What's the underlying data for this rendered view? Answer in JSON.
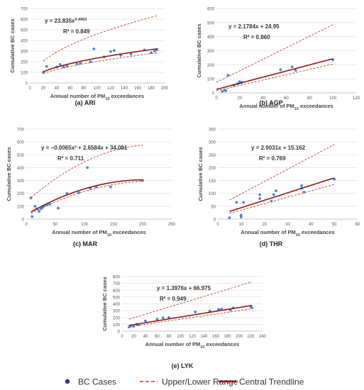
{
  "legend": {
    "items": [
      {
        "label": "BC Cases",
        "kind": "marker",
        "color": "#1f3a93"
      },
      {
        "label": "Upper/Lower Range",
        "kind": "dashed",
        "color": "#c0392b"
      },
      {
        "label": "Central Trendline",
        "kind": "solid",
        "color": "#8b1a1a"
      }
    ]
  },
  "chart_data": [
    {
      "type": "scatter",
      "panel": "(a) ARI",
      "ylabel": "Cumulative BC cases",
      "xlabel": "Annual number of PM10 exceedances",
      "equation": "y = 23.835x^0.4963",
      "r2": "R² = 0.849",
      "xlim": [
        0,
        200
      ],
      "ylim": [
        0,
        700
      ],
      "xticks": [
        0,
        20,
        40,
        60,
        80,
        100,
        120,
        140,
        160,
        180,
        200
      ],
      "yticks": [
        0,
        100,
        200,
        300,
        400,
        500,
        600,
        700
      ],
      "points": [
        [
          20,
          100
        ],
        [
          25,
          155
        ],
        [
          40,
          150
        ],
        [
          45,
          175
        ],
        [
          50,
          150
        ],
        [
          55,
          160
        ],
        [
          70,
          180
        ],
        [
          75,
          185
        ],
        [
          90,
          200
        ],
        [
          95,
          320
        ],
        [
          110,
          245
        ],
        [
          120,
          295
        ],
        [
          125,
          305
        ],
        [
          135,
          260
        ],
        [
          150,
          270
        ],
        [
          170,
          310
        ],
        [
          180,
          285
        ],
        [
          185,
          300
        ],
        [
          188,
          310
        ]
      ],
      "central": {
        "model": "power",
        "a": 23.835,
        "b": 0.4963,
        "x_range": [
          20,
          190
        ]
      },
      "upper": {
        "model": "power",
        "a": 46,
        "b": 0.5,
        "x_range": [
          20,
          190
        ]
      },
      "lower": {
        "model": "power",
        "a": 18.5,
        "b": 0.52,
        "x_range": [
          20,
          190
        ]
      }
    },
    {
      "type": "scatter",
      "panel": "(b) AGP",
      "ylabel": "Cumulative BC cases",
      "xlabel": "Annual number of PM10 exceedances",
      "equation": "y = 2.1784x + 24.95",
      "r2": "R² = 0.860",
      "xlim": [
        0,
        120
      ],
      "ylim": [
        0,
        600
      ],
      "xticks": [
        0,
        20,
        40,
        60,
        80,
        100,
        120
      ],
      "yticks": [
        0,
        100,
        200,
        300,
        400,
        500,
        600
      ],
      "points": [
        [
          5,
          10
        ],
        [
          7,
          20
        ],
        [
          8,
          15
        ],
        [
          10,
          125
        ],
        [
          15,
          55
        ],
        [
          18,
          65
        ],
        [
          20,
          80
        ],
        [
          20,
          70
        ],
        [
          22,
          75
        ],
        [
          55,
          165
        ],
        [
          65,
          185
        ],
        [
          68,
          160
        ],
        [
          100,
          235
        ]
      ],
      "central": {
        "model": "linear",
        "m": 2.1784,
        "c": 24.95,
        "x_range": [
          0,
          100
        ]
      },
      "upper": {
        "model": "linear",
        "m": 4.1,
        "c": 75,
        "x_range": [
          0,
          100
        ]
      },
      "lower": {
        "model": "linear",
        "m": 1.9,
        "c": 15,
        "x_range": [
          0,
          100
        ]
      }
    },
    {
      "type": "scatter",
      "panel": "(c) MAR",
      "ylabel": "Cumulative BC cases",
      "xlabel": "Annual number of PM10 exceedances",
      "equation": "y = −0.0065x² + 2.6584x + 34.081",
      "r2": "R² = 0.711",
      "xlim": [
        0,
        250
      ],
      "ylim": [
        0,
        700
      ],
      "xticks": [
        0,
        50,
        100,
        150,
        200,
        250
      ],
      "yticks": [
        0,
        100,
        200,
        300,
        400,
        500,
        600,
        700
      ],
      "points": [
        [
          8,
          165
        ],
        [
          10,
          20
        ],
        [
          15,
          100
        ],
        [
          18,
          80
        ],
        [
          22,
          60
        ],
        [
          25,
          80
        ],
        [
          28,
          90
        ],
        [
          30,
          100
        ],
        [
          35,
          110
        ],
        [
          40,
          115
        ],
        [
          55,
          85
        ],
        [
          70,
          200
        ],
        [
          90,
          205
        ],
        [
          105,
          400
        ],
        [
          110,
          240
        ],
        [
          120,
          250
        ],
        [
          145,
          250
        ],
        [
          200,
          300
        ]
      ],
      "central": {
        "model": "quadratic",
        "a": -0.0065,
        "b": 2.6584,
        "c": 34.081,
        "x_range": [
          8,
          200
        ]
      },
      "upper": {
        "model": "quadratic",
        "a": -0.009,
        "b": 4.0,
        "c": 135,
        "x_range": [
          8,
          200
        ]
      },
      "lower": {
        "model": "quadratic",
        "a": -0.0055,
        "b": 2.45,
        "c": 25,
        "x_range": [
          8,
          200
        ]
      }
    },
    {
      "type": "scatter",
      "panel": "(d) THR",
      "ylabel": "Cumulative BC cases",
      "xlabel": "Annual number of PM10 exceedances",
      "equation": "y = 2.9031x + 15.162",
      "r2": "R² = 0.769",
      "xlim": [
        0,
        60
      ],
      "ylim": [
        0,
        350
      ],
      "xticks": [
        0,
        10,
        20,
        30,
        40,
        50,
        60
      ],
      "yticks": [
        0,
        50,
        100,
        150,
        200,
        250,
        300,
        350
      ],
      "points": [
        [
          5,
          5
        ],
        [
          8,
          65
        ],
        [
          10,
          15
        ],
        [
          10,
          8
        ],
        [
          11,
          65
        ],
        [
          18,
          95
        ],
        [
          18,
          80
        ],
        [
          23,
          70
        ],
        [
          24,
          95
        ],
        [
          25,
          110
        ],
        [
          36,
          130
        ],
        [
          36,
          120
        ],
        [
          37,
          105
        ],
        [
          50,
          155
        ]
      ],
      "central": {
        "model": "linear",
        "m": 2.9031,
        "c": 15.162,
        "x_range": [
          5,
          50
        ]
      },
      "upper": {
        "model": "linear",
        "m": 4.8,
        "c": 50,
        "x_range": [
          5,
          50
        ]
      },
      "lower": {
        "model": "linear",
        "m": 2.5,
        "c": 10,
        "x_range": [
          5,
          50
        ]
      }
    },
    {
      "type": "scatter",
      "panel": "(e) LYK",
      "ylabel": "Cumulative BC cases",
      "xlabel": "Annual number of PM10 exceedances",
      "equation": "y = 1.3976x + 66.975",
      "r2": "R² = 0.949",
      "xlim": [
        0,
        240
      ],
      "ylim": [
        0,
        800
      ],
      "xticks": [
        0,
        20,
        40,
        60,
        80,
        100,
        120,
        140,
        160,
        180,
        200,
        220,
        240
      ],
      "yticks": [
        0,
        100,
        200,
        300,
        400,
        500,
        600,
        700,
        800
      ],
      "points": [
        [
          12,
          60
        ],
        [
          15,
          75
        ],
        [
          20,
          70
        ],
        [
          25,
          100
        ],
        [
          28,
          95
        ],
        [
          40,
          150
        ],
        [
          60,
          175
        ],
        [
          70,
          195
        ],
        [
          80,
          200
        ],
        [
          125,
          280
        ],
        [
          150,
          295
        ],
        [
          165,
          320
        ],
        [
          170,
          325
        ],
        [
          185,
          310
        ],
        [
          190,
          340
        ],
        [
          220,
          360
        ],
        [
          222,
          340
        ]
      ],
      "central": {
        "model": "linear",
        "m": 1.3976,
        "c": 66.975,
        "x_range": [
          12,
          222
        ]
      },
      "upper": {
        "model": "linear",
        "m": 2.6,
        "c": 145,
        "x_range": [
          12,
          222
        ]
      },
      "lower": {
        "model": "linear",
        "m": 1.25,
        "c": 50,
        "x_range": [
          12,
          222
        ]
      }
    }
  ]
}
